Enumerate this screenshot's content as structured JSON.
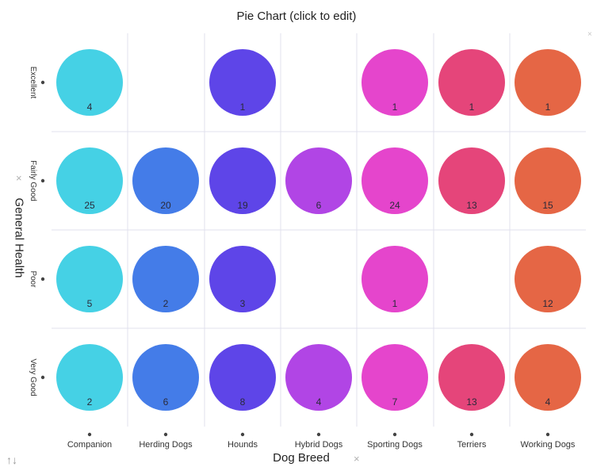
{
  "title": "Pie Chart (click to edit)",
  "controls": {
    "remove_glyph": "×",
    "swap_glyph": "↑↓"
  },
  "chart_data": {
    "type": "pie",
    "layout": "small-multiples-grid",
    "xlabel": "Dog Breed",
    "ylabel": "General Health",
    "columns": [
      "Companion",
      "Herding Dogs",
      "Hounds",
      "Hybrid Dogs",
      "Sporting Dogs",
      "Terriers",
      "Working Dogs"
    ],
    "rows": [
      "Excellent",
      "Fairly Good",
      "Poor",
      "Very Good"
    ],
    "colors": [
      "#45d1e5",
      "#447ce8",
      "#5e45e8",
      "#b145e5",
      "#e545cc",
      "#e5457a",
      "#e56645"
    ],
    "grid_color": "#e1e1ed",
    "values": [
      [
        4,
        null,
        1,
        null,
        1,
        1,
        1
      ],
      [
        25,
        20,
        19,
        6,
        24,
        13,
        15
      ],
      [
        5,
        2,
        3,
        null,
        1,
        null,
        12
      ],
      [
        2,
        6,
        8,
        4,
        7,
        13,
        4
      ]
    ]
  }
}
